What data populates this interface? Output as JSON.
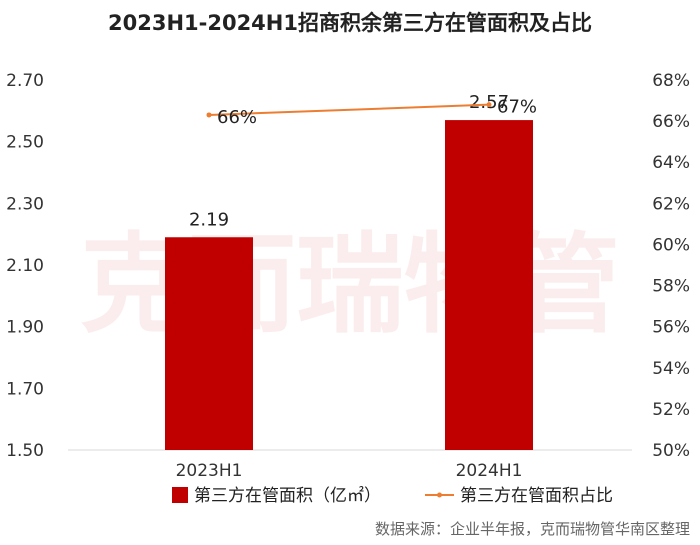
{
  "chart_data": {
    "type": "bar",
    "title": "2023H1-2024H1招商积余第三方在管面积及占比",
    "categories": [
      "2023H1",
      "2024H1"
    ],
    "series": [
      {
        "name": "第三方在管面积（亿㎡）",
        "type": "bar",
        "axis": "left",
        "values": [
          2.19,
          2.57
        ],
        "labels": [
          "2.19",
          "2.57"
        ],
        "color": "#c00000"
      },
      {
        "name": "第三方在管面积占比",
        "type": "line",
        "axis": "right",
        "values": [
          66.3,
          66.8
        ],
        "labels": [
          "66%",
          "67%"
        ],
        "color": "#ed7d31"
      }
    ],
    "y_left": {
      "ylim": [
        1.5,
        2.7
      ],
      "ticks": [
        "1.50",
        "1.70",
        "1.90",
        "2.10",
        "2.30",
        "2.50",
        "2.70"
      ],
      "tick_values": [
        1.5,
        1.7,
        1.9,
        2.1,
        2.3,
        2.5,
        2.7
      ]
    },
    "y_right": {
      "ylim": [
        50,
        68
      ],
      "ticks": [
        "50%",
        "52%",
        "54%",
        "56%",
        "58%",
        "60%",
        "62%",
        "64%",
        "66%",
        "68%"
      ],
      "tick_values": [
        50,
        52,
        54,
        56,
        58,
        60,
        62,
        64,
        66,
        68
      ]
    },
    "grid": false,
    "legend_position": "bottom",
    "source": "数据来源：企业半年报，克而瑞物管华南区整理",
    "watermark": "克而瑞物管"
  }
}
